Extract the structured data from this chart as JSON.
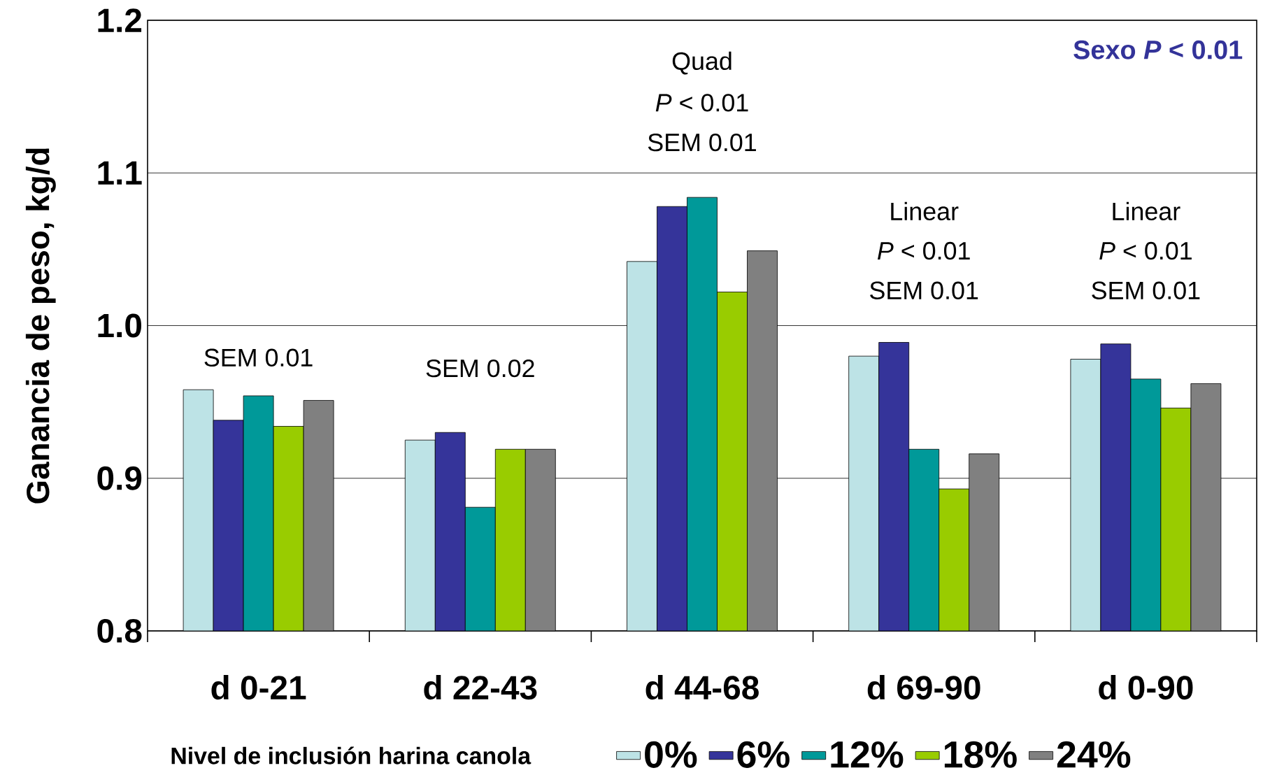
{
  "chart_data": {
    "type": "bar",
    "ylabel": "Ganancia de peso, kg/d",
    "legend_title": "Nivel de inclusión harina canola",
    "legend": "bottom",
    "grid": "y",
    "categories": [
      "d 0-21",
      "d 22-43",
      "d 44-68",
      "d 69-90",
      "d 0-90"
    ],
    "ylim": [
      0.8,
      1.2
    ],
    "yticks": [
      0.8,
      0.9,
      {
        "value": 1.0,
        "label": "1.0"
      },
      1.1,
      1.2
    ],
    "series": [
      {
        "name": "0%",
        "color": "#bde3e6",
        "values": [
          0.958,
          0.925,
          1.042,
          0.98,
          0.978
        ]
      },
      {
        "name": "6%",
        "color": "#35349a",
        "values": [
          0.938,
          0.93,
          1.078,
          0.989,
          0.988
        ]
      },
      {
        "name": "12%",
        "color": "#009999",
        "values": [
          0.954,
          0.881,
          1.084,
          0.919,
          0.965
        ]
      },
      {
        "name": "18%",
        "color": "#99cc00",
        "values": [
          0.934,
          0.919,
          1.022,
          0.893,
          0.946
        ]
      },
      {
        "name": "24%",
        "color": "#808080",
        "values": [
          0.951,
          0.919,
          1.049,
          0.916,
          0.962
        ]
      }
    ],
    "annotations": [
      "SEM 0.01",
      "SEM 0.02",
      "Quad",
      "*P* < 0.01",
      "SEM 0.01",
      "Linear",
      "*P* < 0.01",
      "SEM 0.01",
      "Linear",
      "*P* < 0.01",
      "SEM 0.01",
      "Sexo *P* < 0.01"
    ]
  }
}
